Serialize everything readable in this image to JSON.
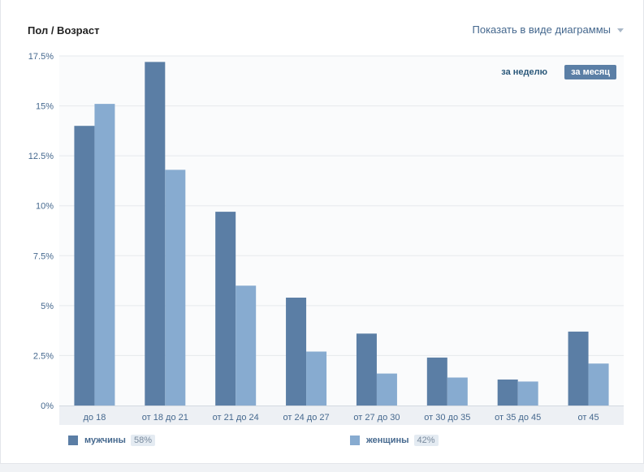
{
  "header": {
    "title": "Пол / Возраст",
    "view_toggle": "Показать в виде диаграммы"
  },
  "period": {
    "week": "за неделю",
    "month": "за месяц",
    "selected": "month"
  },
  "legend": {
    "male": {
      "label": "мужчины",
      "pct": "58%"
    },
    "female": {
      "label": "женщины",
      "pct": "42%"
    }
  },
  "colors": {
    "male": "#5b7ea5",
    "female": "#87abd0",
    "accent": "#45688e"
  },
  "chart_data": {
    "type": "bar",
    "categories": [
      "до 18",
      "от 18 до 21",
      "от 21 до 24",
      "от 24 до 27",
      "от 27 до 30",
      "от 30 до 35",
      "от 35 до 45",
      "от 45"
    ],
    "series": [
      {
        "name": "мужчины",
        "values": [
          14.0,
          17.2,
          9.7,
          5.4,
          3.6,
          2.4,
          1.3,
          3.7
        ]
      },
      {
        "name": "женщины",
        "values": [
          15.1,
          11.8,
          6.0,
          2.7,
          1.6,
          1.4,
          1.2,
          2.1
        ]
      }
    ],
    "yticks": [
      "0%",
      "2.5%",
      "5%",
      "7.5%",
      "10%",
      "12.5%",
      "15%",
      "17.5%"
    ],
    "ylim": [
      0,
      17.5
    ],
    "grid": true,
    "legend_position": "bottom"
  }
}
